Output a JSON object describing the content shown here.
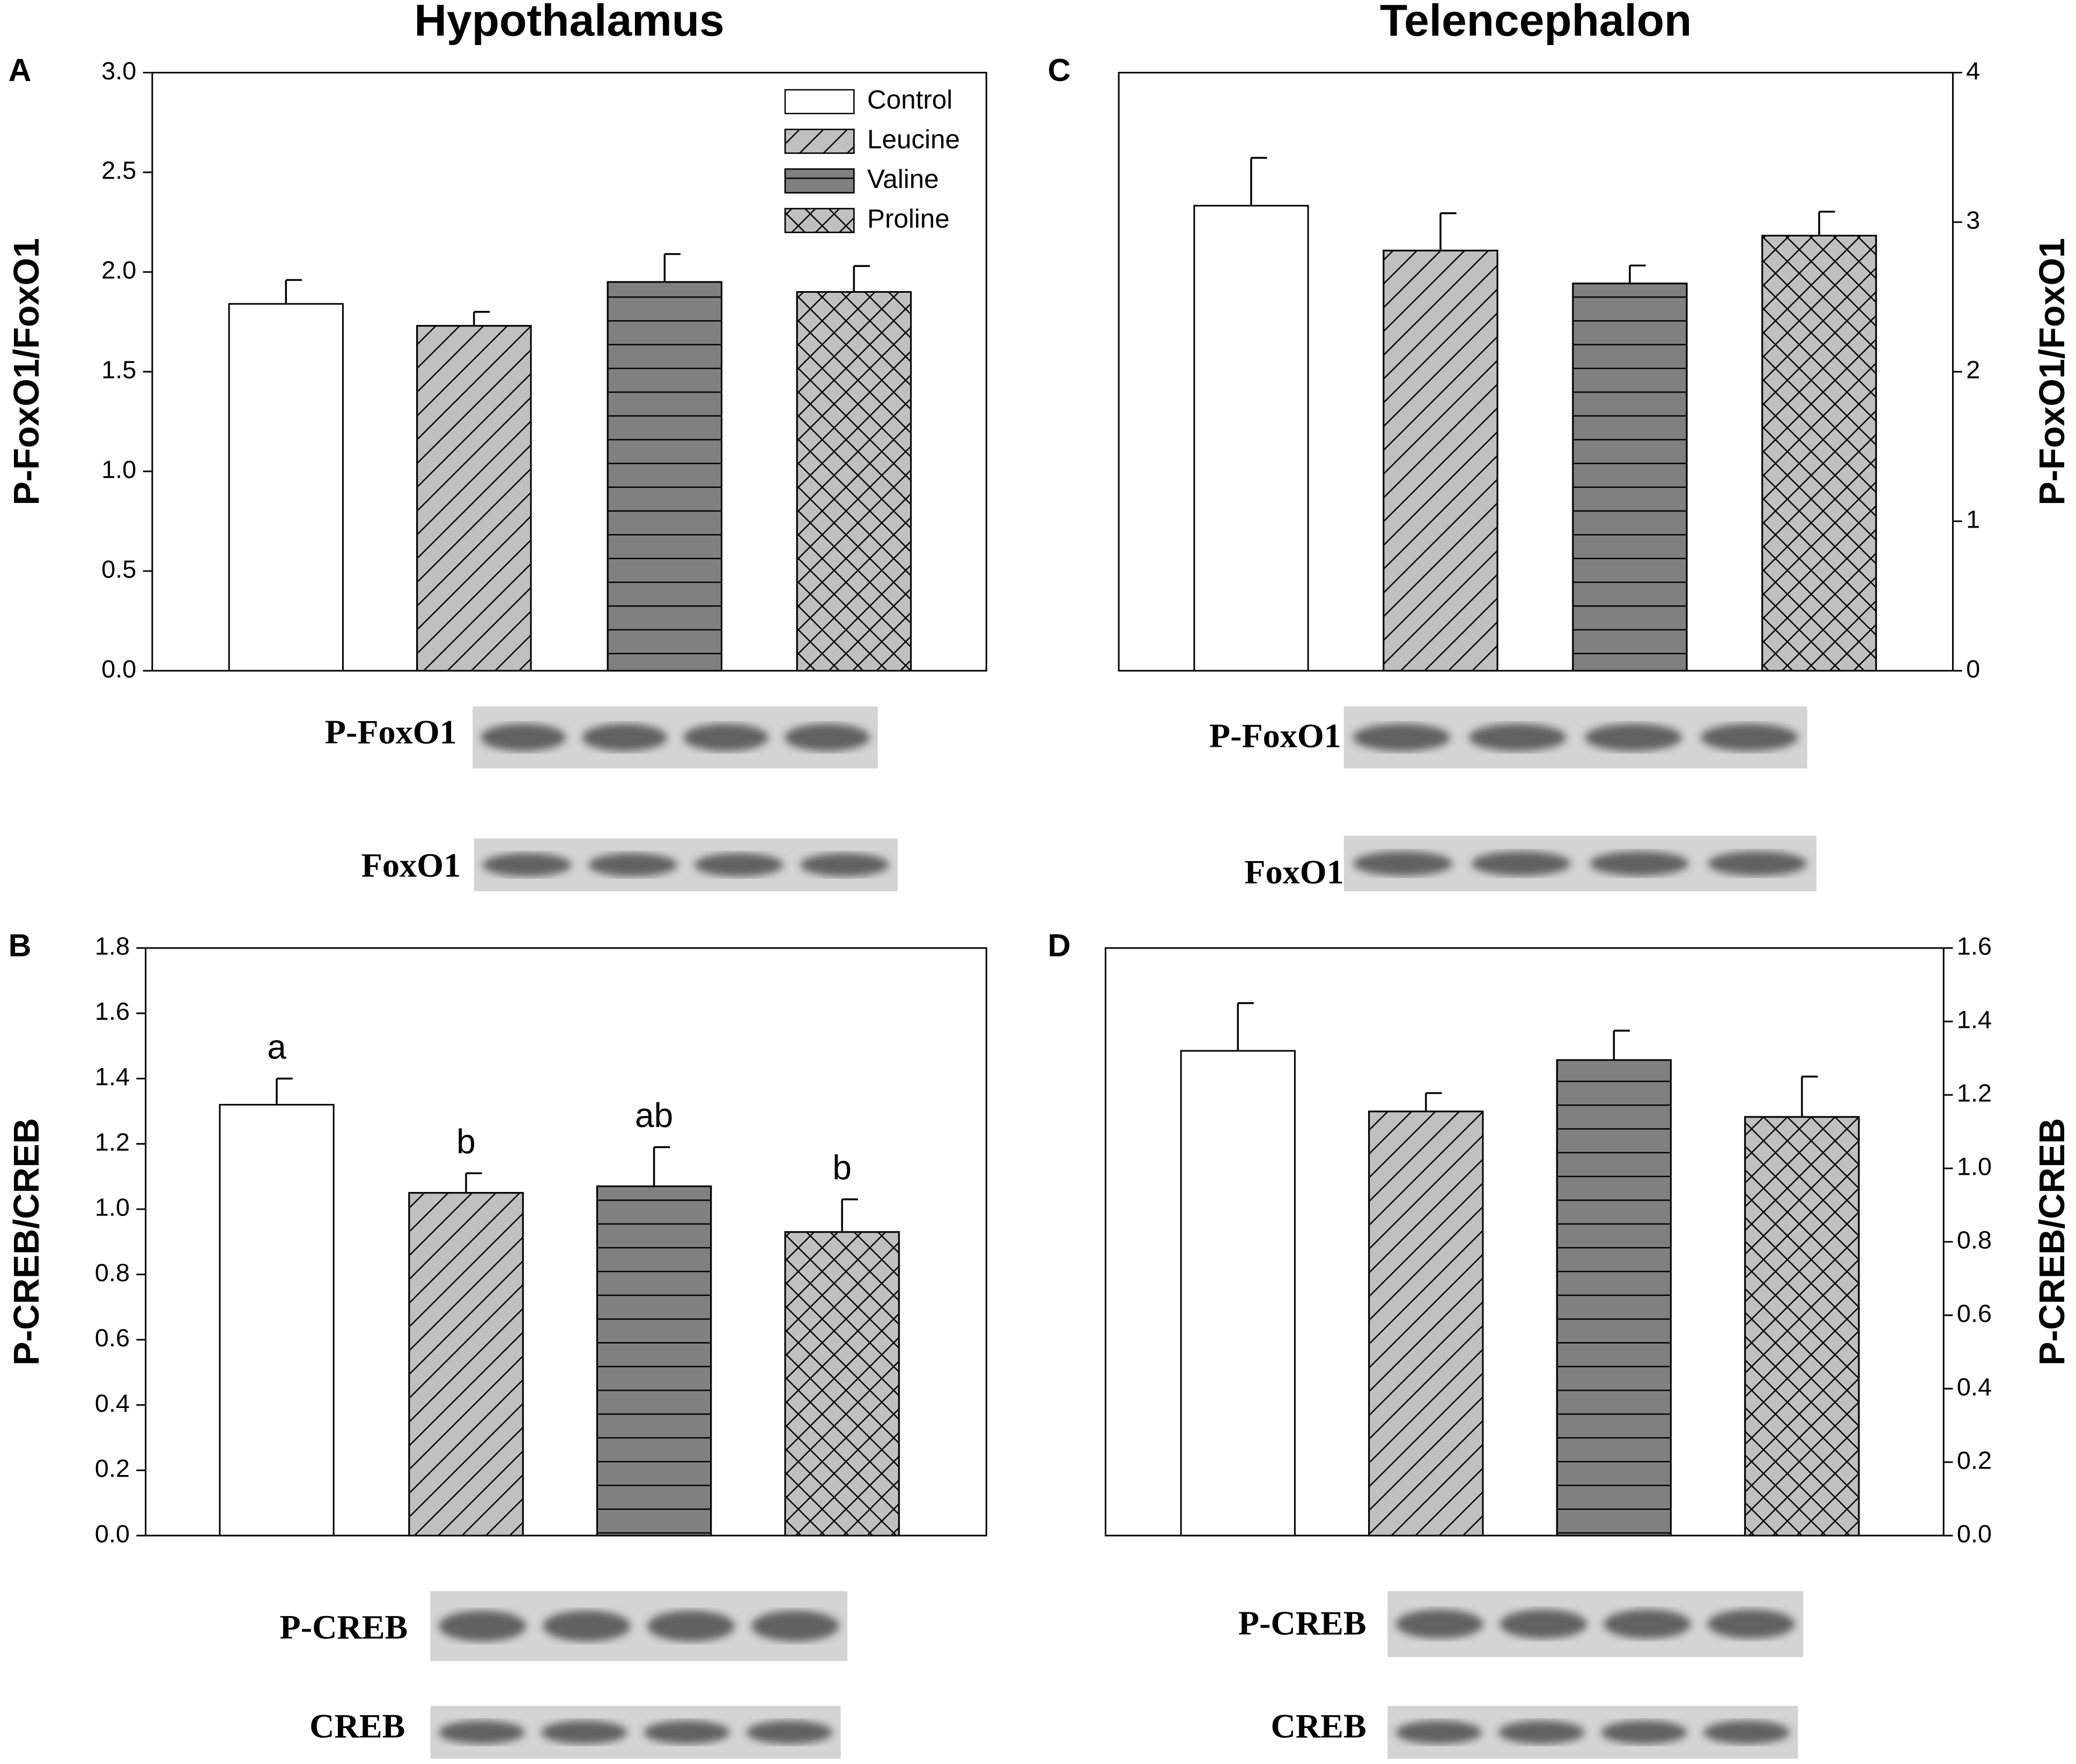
{
  "chart_data": [
    {
      "type": "bar",
      "panel": "A",
      "title": "Hypothalamus",
      "y_label": "P-FoxO1/FoxO1",
      "y_axis_side": "left",
      "ylim": [
        0,
        3
      ],
      "yticks": [
        {
          "value": 0,
          "label": "0.0"
        },
        0.5,
        {
          "value": 1,
          "label": "1.0"
        },
        1.5,
        {
          "value": 2,
          "label": "2.0"
        },
        2.5,
        {
          "value": 3,
          "label": "3.0"
        }
      ],
      "legend": "upper right",
      "series": [
        {
          "name": "Control",
          "color": "#ffffff",
          "pattern": "none",
          "values": [
            1.84
          ],
          "errors": [
            0.12
          ]
        },
        {
          "name": "Leucine",
          "color": "#c0c0c0",
          "pattern": "diagonal",
          "values": [
            1.73
          ],
          "errors": [
            0.07
          ]
        },
        {
          "name": "Valine",
          "color": "#808080",
          "pattern": "horizontal",
          "values": [
            1.95
          ],
          "errors": [
            0.14
          ]
        },
        {
          "name": "Proline",
          "color": "#c0c0c0",
          "pattern": "crosshatch",
          "values": [
            1.9
          ],
          "errors": [
            0.13
          ]
        }
      ],
      "blot_labels": [
        "P-FoxO1",
        "FoxO1"
      ]
    },
    {
      "type": "bar",
      "panel": "B",
      "y_label": "P-CREB/CREB",
      "y_axis_side": "left",
      "ylim": [
        0,
        1.8
      ],
      "yticks": [
        {
          "value": 0,
          "label": "0.0"
        },
        0.2,
        0.4,
        0.6,
        0.8,
        {
          "value": 1,
          "label": "1.0"
        },
        1.2,
        1.4,
        1.6,
        1.8
      ],
      "annotations": [
        "a",
        "b",
        "ab",
        "b"
      ],
      "series": [
        {
          "color": "#ffffff",
          "pattern": "none",
          "values": [
            1.32
          ],
          "errors": [
            0.08
          ]
        },
        {
          "color": "#c0c0c0",
          "pattern": "diagonal",
          "values": [
            1.05
          ],
          "errors": [
            0.06
          ]
        },
        {
          "color": "#808080",
          "pattern": "horizontal",
          "values": [
            1.07
          ],
          "errors": [
            0.12
          ]
        },
        {
          "color": "#c0c0c0",
          "pattern": "crosshatch",
          "values": [
            0.93
          ],
          "errors": [
            0.1
          ]
        }
      ],
      "blot_labels": [
        "P-CREB",
        "CREB"
      ]
    },
    {
      "type": "bar",
      "panel": "C",
      "title": "Telencephalon",
      "y_label": "P-FoxO1/FoxO1",
      "y_axis_side": "right",
      "ylim": [
        0,
        4
      ],
      "yticks": [
        0,
        1,
        2,
        3,
        4
      ],
      "series": [
        {
          "color": "#ffffff",
          "pattern": "none",
          "values": [
            3.11
          ],
          "errors": [
            0.32
          ]
        },
        {
          "color": "#c0c0c0",
          "pattern": "diagonal",
          "values": [
            2.81
          ],
          "errors": [
            0.25
          ]
        },
        {
          "color": "#808080",
          "pattern": "horizontal",
          "values": [
            2.59
          ],
          "errors": [
            0.12
          ]
        },
        {
          "color": "#c0c0c0",
          "pattern": "crosshatch",
          "values": [
            2.91
          ],
          "errors": [
            0.16
          ]
        }
      ],
      "blot_labels": [
        "P-FoxO1",
        "FoxO1"
      ]
    },
    {
      "type": "bar",
      "panel": "D",
      "y_label": "P-CREB/CREB",
      "y_axis_side": "right",
      "ylim": [
        0,
        1.6
      ],
      "yticks": [
        {
          "value": 0,
          "label": "0.0"
        },
        0.2,
        0.4,
        0.6,
        0.8,
        {
          "value": 1,
          "label": "1.0"
        },
        1.2,
        1.4,
        1.6
      ],
      "series": [
        {
          "color": "#ffffff",
          "pattern": "none",
          "values": [
            1.32
          ],
          "errors": [
            0.13
          ]
        },
        {
          "color": "#c0c0c0",
          "pattern": "diagonal",
          "values": [
            1.155
          ],
          "errors": [
            0.05
          ]
        },
        {
          "color": "#808080",
          "pattern": "horizontal",
          "values": [
            1.295
          ],
          "errors": [
            0.08
          ]
        },
        {
          "color": "#c0c0c0",
          "pattern": "crosshatch",
          "values": [
            1.14
          ],
          "errors": [
            0.11
          ]
        }
      ],
      "blot_labels": [
        "P-CREB",
        "CREB"
      ]
    }
  ]
}
